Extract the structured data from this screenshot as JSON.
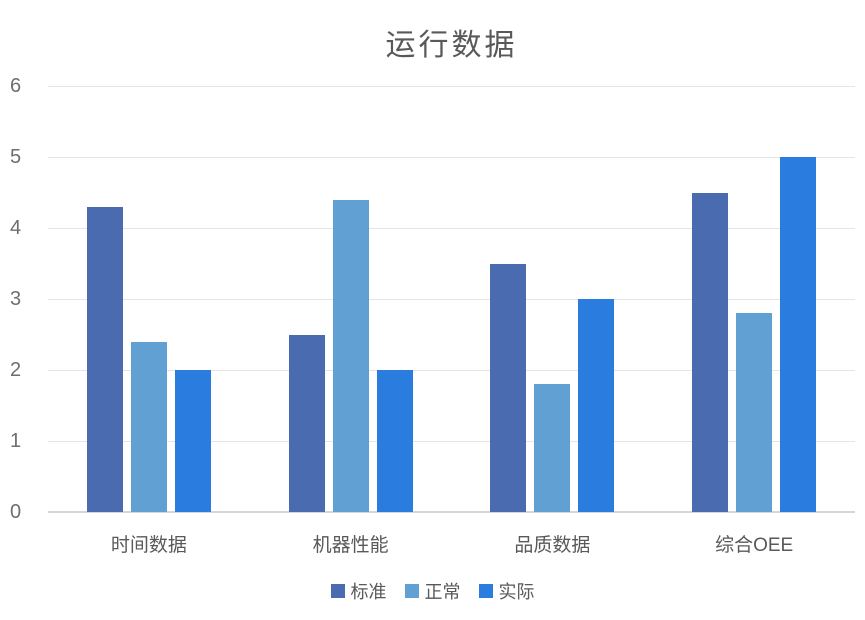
{
  "chart_data": {
    "type": "bar",
    "title": "运行数据",
    "categories": [
      "时间数据",
      "机器性能",
      "品质数据",
      "综合OEE"
    ],
    "series": [
      {
        "name": "标准",
        "color": "#4B6BB0",
        "values": [
          4.3,
          2.5,
          3.5,
          4.5
        ]
      },
      {
        "name": "正常",
        "color": "#61A0D2",
        "values": [
          2.4,
          4.4,
          1.8,
          2.8
        ]
      },
      {
        "name": "实际",
        "color": "#2A7DDE",
        "values": [
          2.0,
          2.0,
          3.0,
          5.0
        ]
      }
    ],
    "xlabel": "",
    "ylabel": "",
    "ylim": [
      0,
      6
    ],
    "yticks": [
      0,
      1,
      2,
      3,
      4,
      5,
      6
    ],
    "grid": true,
    "legend_position": "bottom"
  },
  "style": {
    "title_color": "#595959",
    "axis_label_color": "#6E6E6E",
    "category_label_color": "#595959",
    "gridline_color": "#E5E5E5",
    "baseline_color": "#D7D7D7",
    "background": "#FFFFFF"
  }
}
